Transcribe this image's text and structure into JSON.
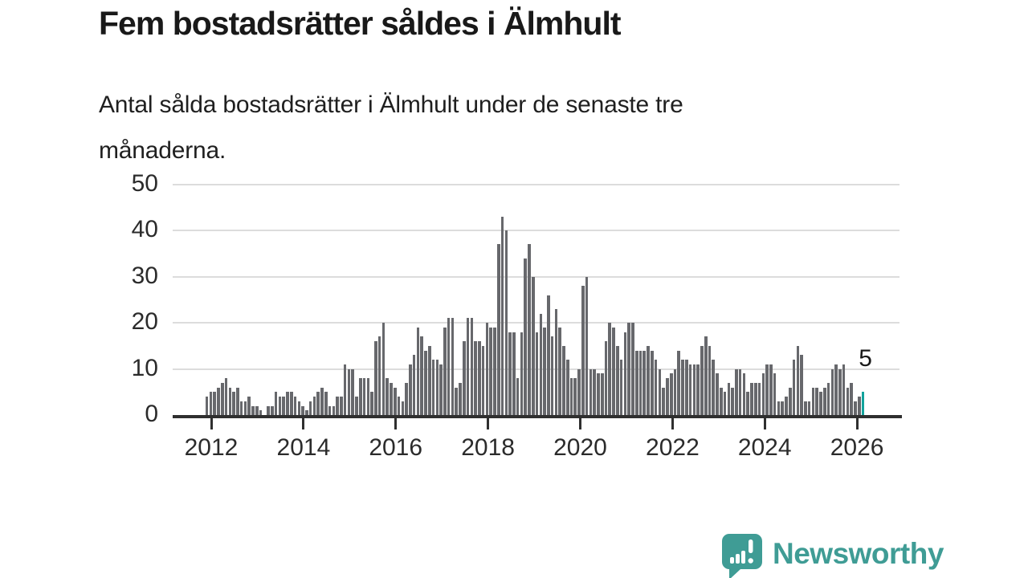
{
  "header": {
    "title": "Fem bostadsrätter såldes i Älmhult",
    "subtitle_line1": "Antal sålda bostadsrätter i Älmhult under de senaste tre",
    "subtitle_line2": "månaderna."
  },
  "chart_data": {
    "type": "bar",
    "title": "Antal sålda bostadsrätter i Älmhult under de senaste tre månaderna",
    "x_start_month": "2011-12",
    "x_end_month": "2026-03",
    "values": [
      4,
      5,
      5,
      6,
      7,
      8,
      6,
      5,
      6,
      3,
      3,
      4,
      2,
      2,
      1,
      0,
      2,
      2,
      5,
      4,
      4,
      5,
      5,
      4,
      3,
      2,
      1,
      3,
      4,
      5,
      6,
      5,
      2,
      2,
      4,
      4,
      11,
      10,
      10,
      4,
      8,
      8,
      8,
      5,
      16,
      17,
      20,
      8,
      7,
      6,
      4,
      3,
      7,
      11,
      13,
      19,
      17,
      14,
      15,
      12,
      12,
      11,
      19,
      21,
      21,
      6,
      7,
      16,
      21,
      21,
      16,
      16,
      15,
      20,
      19,
      19,
      37,
      43,
      40,
      18,
      18,
      8,
      18,
      34,
      37,
      30,
      18,
      22,
      19,
      26,
      17,
      23,
      19,
      15,
      12,
      8,
      8,
      10,
      28,
      30,
      10,
      10,
      9,
      9,
      16,
      20,
      19,
      15,
      12,
      18,
      20,
      20,
      14,
      14,
      14,
      15,
      14,
      12,
      10,
      6,
      8,
      9,
      10,
      14,
      12,
      12,
      11,
      11,
      11,
      15,
      17,
      15,
      12,
      9,
      6,
      5,
      7,
      6,
      10,
      10,
      9,
      5,
      7,
      7,
      7,
      9,
      11,
      11,
      9,
      3,
      3,
      4,
      6,
      12,
      15,
      13,
      3,
      3,
      6,
      6,
      5,
      6,
      7,
      10,
      11,
      10,
      11,
      6,
      7,
      3,
      4,
      5
    ],
    "highlight_last_value": 5,
    "annotation_text": "5",
    "y_ticks": [
      0,
      10,
      20,
      30,
      40,
      50
    ],
    "ylim": [
      0,
      50
    ],
    "x_tick_labels": [
      "2012",
      "2014",
      "2016",
      "2018",
      "2020",
      "2022",
      "2024",
      "2026"
    ],
    "grid": true,
    "legend": "none",
    "bar_color": "#67686c",
    "highlight_color": "#12a39c",
    "grid_color": "#dcdcdc",
    "axis_color": "#2f2f2f"
  },
  "footer": {
    "brand": "Newsworthy",
    "brand_color": "#3f9c95",
    "logo_icon": "newsworthy-speech-bubble-chart-icon"
  }
}
